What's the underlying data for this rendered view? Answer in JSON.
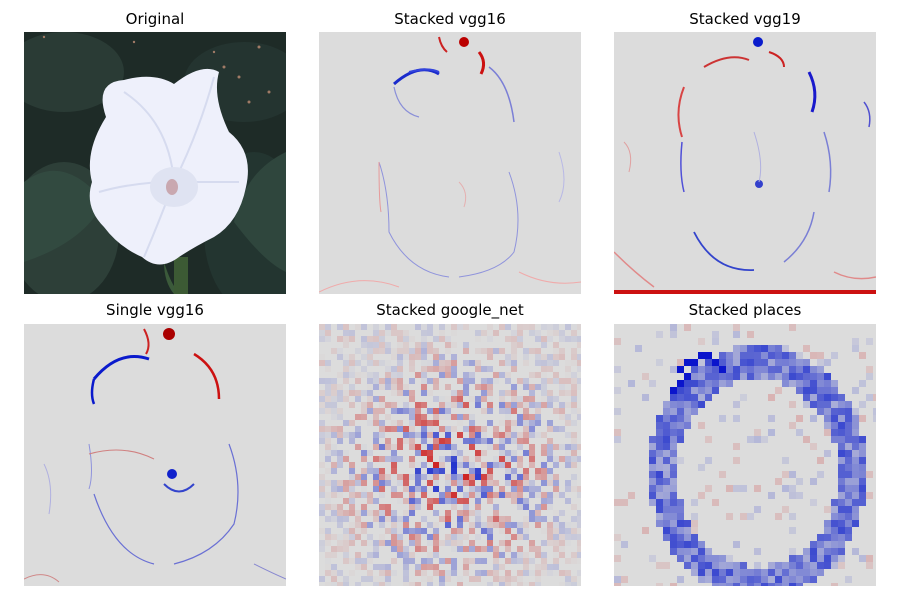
{
  "figure": {
    "panels": [
      {
        "title": "Original"
      },
      {
        "title": "Stacked vgg16"
      },
      {
        "title": "Stacked vgg19"
      },
      {
        "title": "Single vgg16"
      },
      {
        "title": "Stacked google_net"
      },
      {
        "title": "Stacked places"
      }
    ]
  },
  "colors": {
    "background_map": "#dcdcdc",
    "positive": "#cc0000",
    "negative": "#0000cc",
    "flower": "#eef0fb",
    "foliage": "#1f2e2a"
  }
}
